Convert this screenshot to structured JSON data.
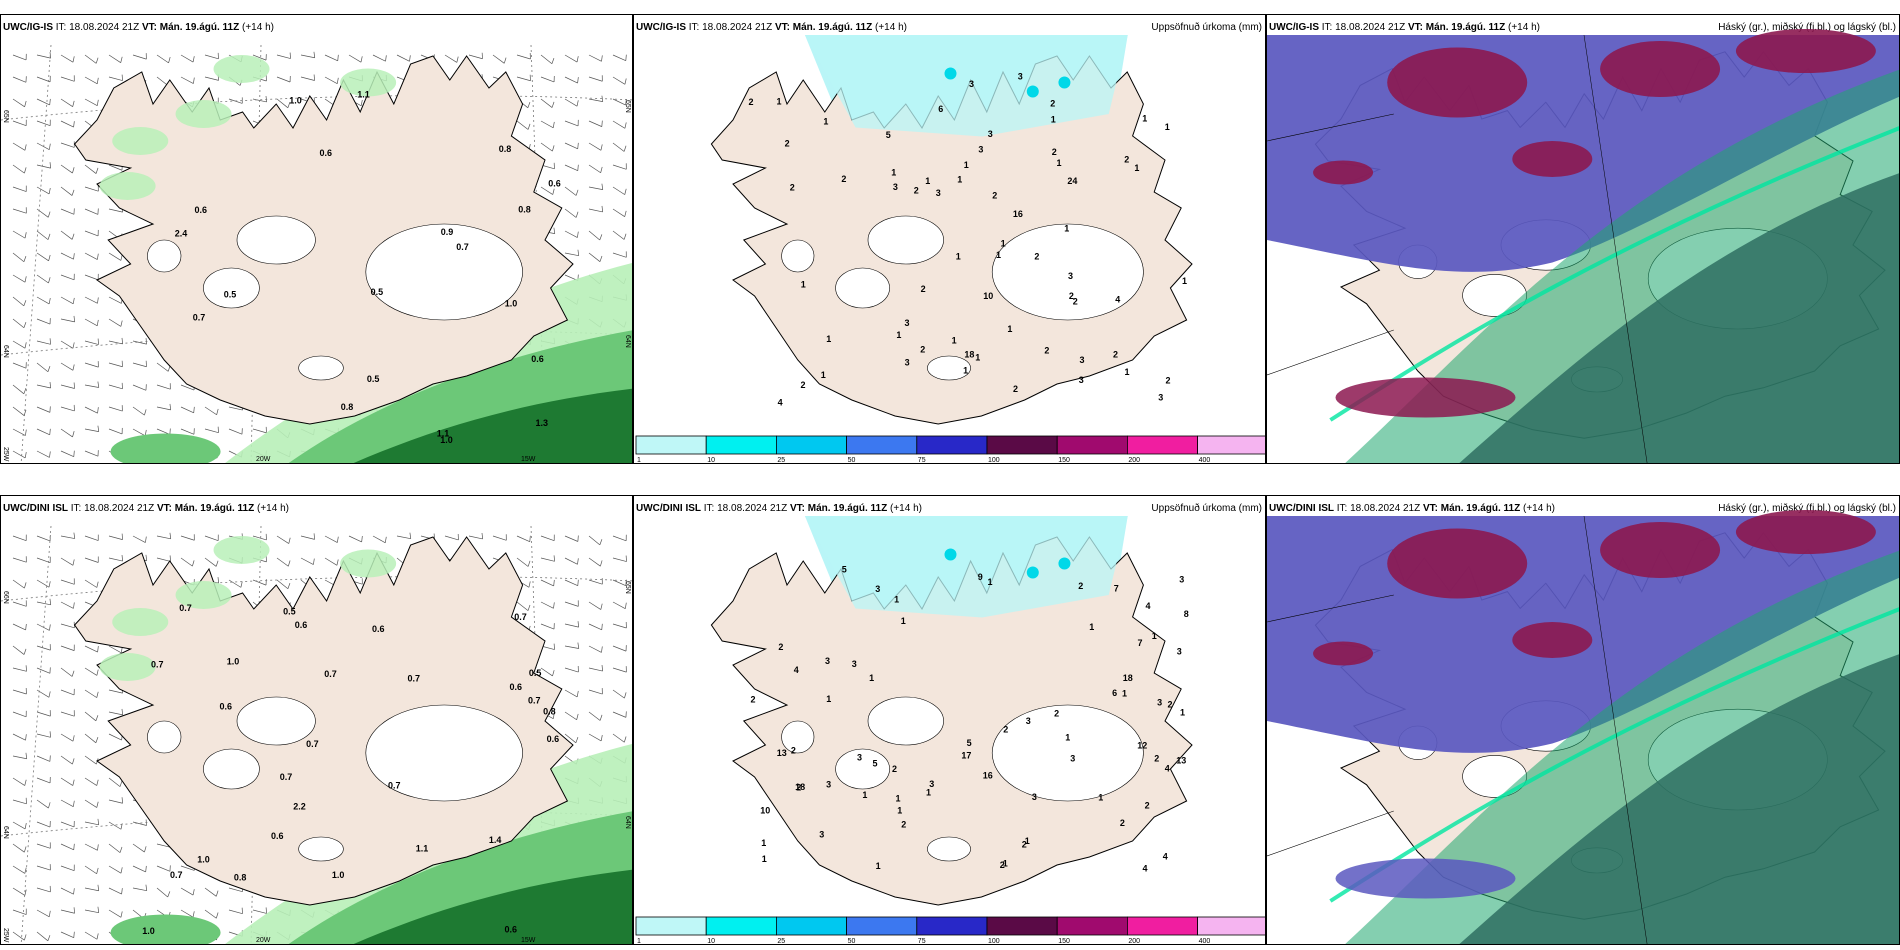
{
  "panels": [
    {
      "model": "UWC/IG-IS",
      "it_label": "IT:",
      "it": "18.08.2024 21Z",
      "vt_label": "VT:",
      "vt": "Mán. 19.ágú. 11Z",
      "lead": "(+14 h)",
      "title": "",
      "axis_labels": [
        "65N",
        "64N",
        "25W",
        "20W",
        "15W",
        "65N",
        "64N"
      ],
      "value_labels": [
        "0.6",
        "1.0",
        "0.8",
        "0.8",
        "0.6",
        "1.1",
        "0.6",
        "0.5",
        "0.5",
        "0.8",
        "1.1",
        "0.9",
        "0.7",
        "1.0",
        "0.5",
        "0.6",
        "0.7",
        "1.0",
        "1.3",
        "2.4"
      ]
    },
    {
      "model": "UWC/IG-IS",
      "it_label": "IT:",
      "it": "18.08.2024 21Z",
      "vt_label": "VT:",
      "vt": "Mán. 19.ágú. 11Z",
      "lead": "(+14 h)",
      "title": "Uppsöfnuð úrkoma (mm)",
      "value_labels": [
        "2",
        "4",
        "1",
        "10",
        "6",
        "3",
        "2",
        "2",
        "3",
        "1",
        "3",
        "3",
        "2",
        "3",
        "2",
        "1",
        "2",
        "1",
        "1",
        "1",
        "2",
        "1",
        "1",
        "2",
        "2",
        "1",
        "1",
        "3",
        "1",
        "1",
        "1",
        "2",
        "3",
        "4",
        "1",
        "2",
        "18",
        "24",
        "2",
        "1",
        "2",
        "3",
        "5",
        "3",
        "1",
        "2",
        "1",
        "1",
        "1",
        "2",
        "2",
        "1",
        "1",
        "3",
        "1",
        "1",
        "2",
        "3",
        "16",
        "3",
        "2",
        "2",
        "1",
        "1"
      ]
    },
    {
      "model": "UWC/IG-IS",
      "it_label": "IT:",
      "it": "18.08.2024 21Z",
      "vt_label": "VT:",
      "vt": "Mán. 19.ágú. 11Z",
      "lead": "(+14 h)",
      "title": "Háský (gr.), miðský (fj.bl.) og lágský (bl.)"
    },
    {
      "model": "UWC/DINI ISL",
      "it_label": "IT:",
      "it": "18.08.2024 21Z",
      "vt_label": "VT:",
      "vt": "Mán. 19.ágú. 11Z",
      "lead": "(+14 h)",
      "title": "",
      "axis_labels": [
        "66N",
        "64N",
        "25W",
        "20W",
        "15W",
        "65N",
        "64N"
      ],
      "value_labels": [
        "0.6",
        "0.6",
        "1.0",
        "1.1",
        "0.6",
        "0.6",
        "0.7",
        "0.7",
        "0.7",
        "1.0",
        "1.0",
        "2.2",
        "0.7",
        "0.6",
        "0.7",
        "1.0",
        "0.7",
        "0.7",
        "0.8",
        "0.7",
        "0.6",
        "0.5",
        "0.5",
        "0.8",
        "0.7",
        "0.6",
        "0.7",
        "1.4"
      ]
    },
    {
      "model": "UWC/DINI ISL",
      "it_label": "IT:",
      "it": "18.08.2024 21Z",
      "vt_label": "VT:",
      "vt": "Mán. 19.ágú. 11Z",
      "lead": "(+14 h)",
      "title": "Uppsöfnuð úrkoma (mm)",
      "value_labels": [
        "3",
        "2",
        "2",
        "2",
        "2",
        "2",
        "4",
        "5",
        "3",
        "5",
        "9",
        "10",
        "3",
        "3",
        "12",
        "17",
        "13",
        "13",
        "18",
        "18",
        "4",
        "7",
        "4",
        "3",
        "8",
        "2",
        "7",
        "1",
        "2",
        "2",
        "4",
        "6",
        "5",
        "3",
        "4",
        "2",
        "3",
        "1",
        "1",
        "3",
        "1",
        "1",
        "2",
        "1",
        "1",
        "3",
        "1",
        "1",
        "3",
        "1",
        "1",
        "2",
        "2",
        "2",
        "1",
        "1",
        "2",
        "1",
        "1",
        "1",
        "3",
        "3",
        "1",
        "2",
        "3",
        "1",
        "1",
        "16",
        "1"
      ]
    },
    {
      "model": "UWC/DINI ISL",
      "it_label": "IT:",
      "it": "18.08.2024 21Z",
      "vt_label": "VT:",
      "vt": "Mán. 19.ágú. 11Z",
      "lead": "(+14 h)",
      "title": "Háský (gr.), miðský (fj.bl.) og lágský (bl.)"
    }
  ],
  "colorbar": {
    "ticks": [
      "1",
      "10",
      "25",
      "50",
      "75",
      "100",
      "150",
      "200",
      "400"
    ],
    "colors": [
      "#bff7f7",
      "#00f0f0",
      "#00c8f0",
      "#3c78f0",
      "#2828c8",
      "#5a0a46",
      "#a00a6e",
      "#f01ea0",
      "#f5b4f0"
    ]
  },
  "palette": {
    "land": "#f3e6dc",
    "precip_light": "#b8f0b8",
    "precip_mid": "#6cc878",
    "precip_dark": "#1e7a32",
    "cloud_high": "#1fa870",
    "cloud_mid": "#5a58c0",
    "cloud_low": "#8c1850"
  }
}
